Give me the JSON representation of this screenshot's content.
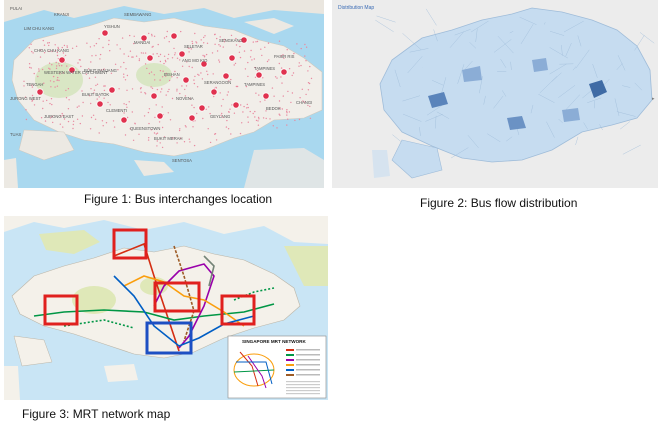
{
  "figures": [
    {
      "caption": "Figure 1: Bus interchanges location",
      "map_labels": [
        "PULAI",
        "KRANJI",
        "LIM CHU KANG",
        "YISHUN",
        "SEMBAWANG",
        "SELETAR",
        "SENGKANG",
        "TAMPINES",
        "CHOA CHU KANG",
        "BUKIT PANJANG",
        "BUKIT BATOK",
        "JURONG EAST",
        "CLEMENTI",
        "QUEENSTOWN",
        "BUKIT MERAH",
        "NOVENA",
        "GEYLANG",
        "BEDOK",
        "CHANGI",
        "PASIR RIS",
        "TAMPINES",
        "BISHAN",
        "SERANGOON",
        "SENTOSA",
        "TUAS",
        "JURONG WEST",
        "MANDAI",
        "WESTERN WATER CATCHMENT",
        "TENGAH",
        "ANG MO KIO"
      ],
      "colors": {
        "land": "#f1eee9",
        "water": "#a9d8ef",
        "marker": "#e0324f"
      }
    },
    {
      "caption": "Figure 2: Bus flow distribution",
      "header_text": "Distribution Map",
      "colors": {
        "base": "#c6dcf0",
        "dark": "#4d78b0",
        "water": "#e8e8e8"
      }
    },
    {
      "caption": "Figure 3: MRT network map",
      "inset_title": "SINGAPORE MRT NETWORK",
      "colors": {
        "sea": "#c9e5f5",
        "land": "#f4f1ea",
        "green_area": "#dfe8b8",
        "highlight_red": "#e0201e",
        "highlight_blue": "#1d4fc3"
      }
    }
  ]
}
